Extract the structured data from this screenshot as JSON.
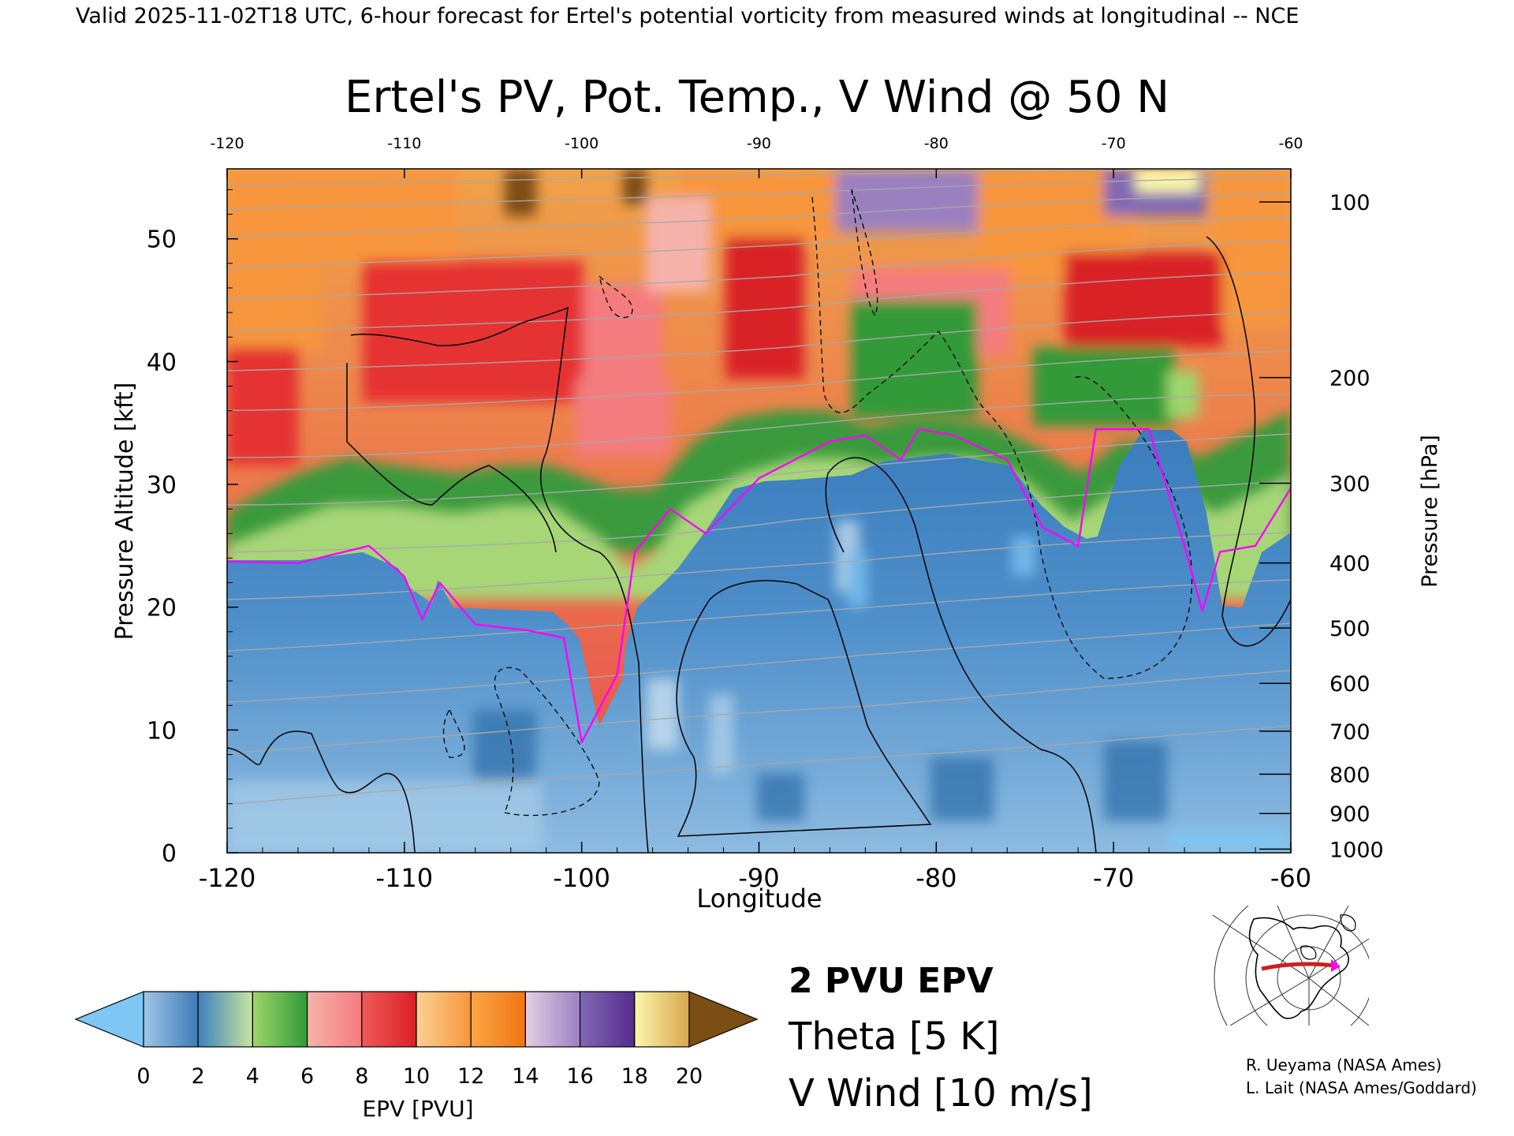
{
  "header": {
    "caption": "Valid 2025-11-02T18 UTC, 6-hour forecast for Ertel's potential vorticity from measured winds at longitudinal -- NCE"
  },
  "chart_data": {
    "type": "heatmap",
    "title": "Ertel's PV, Pot. Temp., V Wind @ 50 N",
    "xlabel": "Longitude",
    "ylabel_left": "Pressure Altitude [kft]",
    "ylabel_right": "Pressure [hPa]",
    "xlim": [
      -120,
      -60
    ],
    "ylim": [
      0,
      55.7
    ],
    "x_ticks": [
      "-120",
      "-110",
      "-100",
      "-90",
      "-80",
      "-70",
      "-60"
    ],
    "x_ticks_top": [
      "-120",
      "-110",
      "-100",
      "-90",
      "-80",
      "-70",
      "-60"
    ],
    "y_ticks_left": [
      0,
      10,
      20,
      30,
      40,
      50
    ],
    "pressure_ticks": [
      {
        "label": "100",
        "kft": 53.0
      },
      {
        "label": "200",
        "kft": 38.7
      },
      {
        "label": "300",
        "kft": 30.1
      },
      {
        "label": "400",
        "kft": 23.6
      },
      {
        "label": "500",
        "kft": 18.3
      },
      {
        "label": "600",
        "kft": 13.8
      },
      {
        "label": "700",
        "kft": 9.9
      },
      {
        "label": "800",
        "kft": 6.4
      },
      {
        "label": "900",
        "kft": 3.2
      },
      {
        "label": "1000",
        "kft": 0.3
      }
    ],
    "tropopause_2pvu_kft": [
      {
        "lon": -120,
        "kft": 23.7
      },
      {
        "lon": -116,
        "kft": 23.6
      },
      {
        "lon": -112,
        "kft": 25.0
      },
      {
        "lon": -110,
        "kft": 22.5
      },
      {
        "lon": -109,
        "kft": 19.0
      },
      {
        "lon": -108,
        "kft": 22.0
      },
      {
        "lon": -106,
        "kft": 18.6
      },
      {
        "lon": -103,
        "kft": 18.1
      },
      {
        "lon": -101,
        "kft": 17.5
      },
      {
        "lon": -100,
        "kft": 9.0
      },
      {
        "lon": -98,
        "kft": 14.5
      },
      {
        "lon": -97,
        "kft": 24.5
      },
      {
        "lon": -95,
        "kft": 28.0
      },
      {
        "lon": -93,
        "kft": 26.0
      },
      {
        "lon": -90,
        "kft": 30.5
      },
      {
        "lon": -86,
        "kft": 33.5
      },
      {
        "lon": -84,
        "kft": 34.0
      },
      {
        "lon": -82,
        "kft": 32.0
      },
      {
        "lon": -81,
        "kft": 34.5
      },
      {
        "lon": -79,
        "kft": 34.0
      },
      {
        "lon": -76,
        "kft": 32.0
      },
      {
        "lon": -74,
        "kft": 26.5
      },
      {
        "lon": -72,
        "kft": 25.0
      },
      {
        "lon": -71,
        "kft": 34.5
      },
      {
        "lon": -68,
        "kft": 34.5
      },
      {
        "lon": -66,
        "kft": 25.0
      },
      {
        "lon": -65,
        "kft": 19.7
      },
      {
        "lon": -64,
        "kft": 24.5
      },
      {
        "lon": -62,
        "kft": 25.0
      },
      {
        "lon": -60,
        "kft": 29.7
      }
    ],
    "colorbar": {
      "label": "EPV [PVU]",
      "ticks": [
        "0",
        "2",
        "4",
        "6",
        "8",
        "10",
        "12",
        "14",
        "16",
        "18",
        "20"
      ],
      "segments": [
        {
          "from": 0,
          "to": 2,
          "colors": [
            "#9fc6e6",
            "#3d7ab8"
          ]
        },
        {
          "from": 2,
          "to": 4,
          "colors": [
            "#3c82bf",
            "#c9e59f"
          ]
        },
        {
          "from": 4,
          "to": 6,
          "colors": [
            "#9ed66c",
            "#319a39"
          ]
        },
        {
          "from": 6,
          "to": 8,
          "colors": [
            "#f6b3ac",
            "#f57b7e"
          ]
        },
        {
          "from": 8,
          "to": 10,
          "colors": [
            "#f05a5a",
            "#d92026"
          ]
        },
        {
          "from": 10,
          "to": 12,
          "colors": [
            "#fbd192",
            "#f7963c"
          ]
        },
        {
          "from": 12,
          "to": 14,
          "colors": [
            "#fba545",
            "#ef7612"
          ]
        },
        {
          "from": 14,
          "to": 16,
          "colors": [
            "#e3cfe3",
            "#9b80c0"
          ]
        },
        {
          "from": 16,
          "to": 18,
          "colors": [
            "#8169b4",
            "#552c8f"
          ]
        },
        {
          "from": 18,
          "to": 20,
          "colors": [
            "#fcf6ac",
            "#d8a64e"
          ]
        }
      ],
      "under_color": "#7ec7f4",
      "over_color": "#7b4e13"
    },
    "legend": [
      {
        "label": "2 PVU EPV",
        "color": "#ff00ff"
      },
      {
        "label": "Theta [5 K]",
        "color": "#a9a9a9"
      },
      {
        "label": "V Wind [10 m/s]",
        "color": "#000000"
      }
    ],
    "grid": false
  },
  "credits": {
    "line1": "R. Ueyama (NASA Ames)",
    "line2": "L. Lait (NASA Ames/Goddard)"
  },
  "colors": {
    "tropopause": "#ff00ff",
    "theta": "#a9a9a9",
    "wind": "#000000",
    "section_line": "#cc1f1f"
  }
}
